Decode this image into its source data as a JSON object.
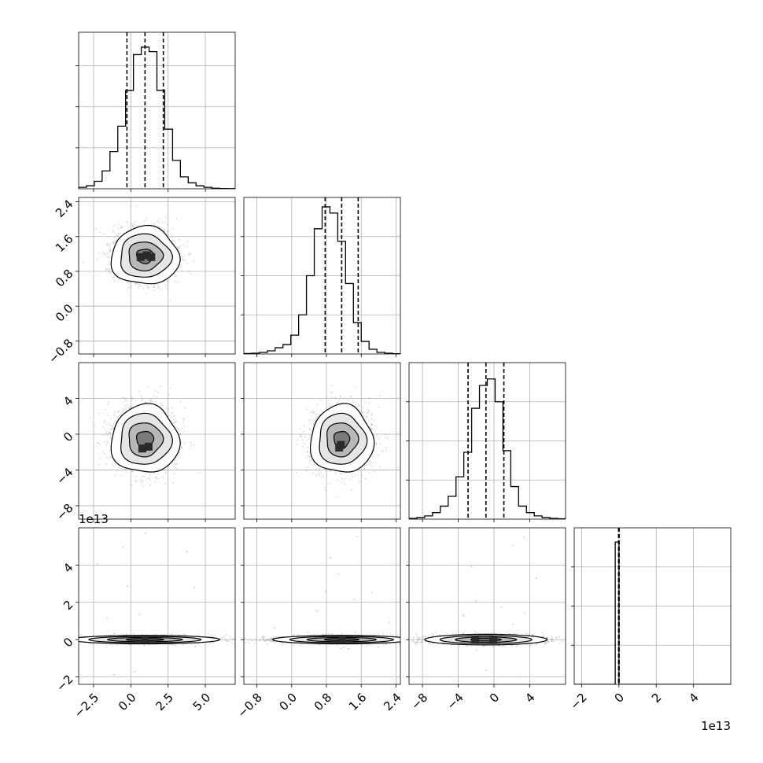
{
  "figure": {
    "type": "corner-plot",
    "n_params": 4
  },
  "chart_data": {
    "type": "corner",
    "title": "",
    "colors": {
      "line": "#000000",
      "grid": "#b0b0b0",
      "scatter": "#8a8a8a",
      "fill_dark": "#2a2a2a"
    },
    "grid": true,
    "params": [
      {
        "index": 0,
        "range": [
          -3.5,
          7.0
        ],
        "ticks": [
          -2.5,
          0.0,
          2.5,
          5.0
        ],
        "tick_labels": [
          "−2.5",
          "0.0",
          "2.5",
          "5.0"
        ],
        "offset_text": "",
        "hist_edges_start": -3.5,
        "hist_bin_width": 0.525,
        "hist_counts": [
          1,
          2,
          5,
          12,
          25,
          42,
          66,
          90,
          95,
          92,
          66,
          40,
          19,
          8,
          4,
          2,
          1,
          0.4,
          0.2,
          0.1
        ],
        "hist_ymax": 105,
        "hist_yticks": [
          0,
          27.5,
          55,
          82.5
        ],
        "quantiles": [
          -0.26,
          0.95,
          2.18
        ]
      },
      {
        "index": 1,
        "range": [
          -1.1,
          2.5
        ],
        "ticks": [
          -0.8,
          0.0,
          0.8,
          1.6,
          2.4
        ],
        "tick_labels": [
          "−0.8",
          "0.0",
          "0.8",
          "1.6",
          "2.4"
        ],
        "offset_text": "",
        "hist_edges_start": -1.1,
        "hist_bin_width": 0.18,
        "hist_counts": [
          0.3,
          0.5,
          1,
          2,
          4,
          6,
          12,
          25,
          50,
          80,
          94,
          90,
          72,
          45,
          20,
          8,
          3,
          1,
          0.5,
          0.2
        ],
        "hist_ymax": 100,
        "hist_yticks": [
          0,
          25,
          50,
          75
        ],
        "quantiles": [
          0.77,
          1.15,
          1.53
        ]
      },
      {
        "index": 2,
        "range": [
          -9.5,
          8.0
        ],
        "ticks": [
          -8,
          -4,
          0,
          4
        ],
        "tick_labels": [
          "−8",
          "−4",
          "0",
          "4"
        ],
        "offset_text": "",
        "hist_edges_start": -9.5,
        "hist_bin_width": 0.875,
        "hist_counts": [
          0.5,
          1,
          2,
          4,
          8,
          14,
          26,
          41,
          68,
          82,
          86,
          72,
          42,
          20,
          8,
          4,
          2,
          1,
          0.5,
          0.2
        ],
        "hist_ymax": 96,
        "hist_yticks": [
          0,
          24,
          48,
          72
        ],
        "quantiles": [
          -2.9,
          -0.9,
          1.1
        ]
      },
      {
        "index": 3,
        "range": [
          -2.4,
          6.0
        ],
        "ticks": [
          -2,
          0,
          2,
          4
        ],
        "tick_labels": [
          "−2",
          "0",
          "2",
          "4"
        ],
        "offset_text": "1e13",
        "hist_edges_start": -0.2,
        "hist_bin_width": 0.2,
        "hist_counts": [
          100
        ],
        "hist_ymax": 110,
        "hist_yticks": [
          0,
          27.5,
          55,
          82.5
        ],
        "quantiles": [
          -0.02,
          0.0,
          0.01
        ]
      }
    ],
    "pairs": [
      {
        "row": 1,
        "col": 0,
        "cx": 0.95,
        "cy": 1.15,
        "sx": 1.2,
        "sy": 0.35,
        "width_scale": 1.0,
        "core_offsets": [
          [
            -0.25,
            -0.06
          ],
          [
            0.1,
            0.06
          ],
          [
            0.35,
            -0.06
          ]
        ]
      },
      {
        "row": 2,
        "col": 0,
        "cx": 0.95,
        "cy": -0.6,
        "sx": 1.2,
        "sy": 2.0,
        "width_scale": 1.0,
        "core_offsets": [
          [
            -0.15,
            -0.5
          ],
          [
            0.2,
            -0.4
          ]
        ]
      },
      {
        "row": 2,
        "col": 1,
        "cx": 1.15,
        "cy": -0.6,
        "sx": 0.38,
        "sy": 2.0,
        "width_scale": 1.0,
        "core_offsets": [
          [
            -0.05,
            -0.3
          ],
          [
            -0.15,
            -0.45
          ]
        ]
      },
      {
        "row": 3,
        "col": 0,
        "cx": 0.95,
        "cy": 0.0,
        "sx": 1.2,
        "sy": 0.12,
        "width_scale": 2.2,
        "core_offsets": [
          [
            0.0,
            0.0
          ]
        ]
      },
      {
        "row": 3,
        "col": 1,
        "cx": 1.15,
        "cy": 0.0,
        "sx": 0.38,
        "sy": 0.12,
        "width_scale": 2.2,
        "core_offsets": [
          [
            0.0,
            0.0
          ]
        ]
      },
      {
        "row": 3,
        "col": 2,
        "cx": -0.9,
        "cy": 0.0,
        "sx": 2.0,
        "sy": 0.15,
        "width_scale": 1.8,
        "core_offsets": [
          [
            -0.6,
            0.0
          ],
          [
            0.4,
            0.0
          ]
        ]
      }
    ],
    "contour_levels_sigma": [
      0.5,
      1.0,
      1.5,
      2.0
    ],
    "scatter_samples_per_panel": 2200
  }
}
